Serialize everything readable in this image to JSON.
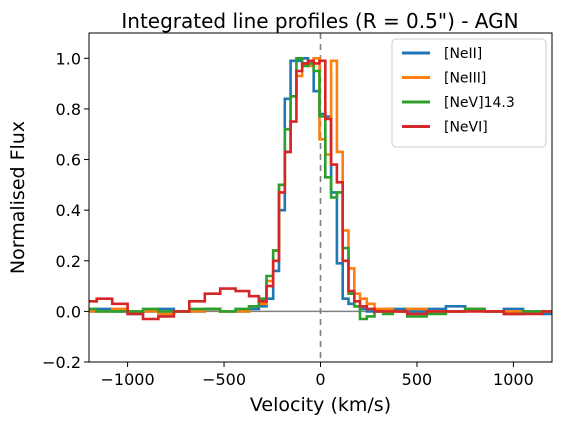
{
  "chart_data": {
    "type": "line",
    "title": "Integrated line profiles (R = 0.5\") - AGN",
    "xlabel": "Velocity (km/s)",
    "ylabel": "Normalised Flux",
    "xlim": [
      -1200,
      1200
    ],
    "ylim": [
      -0.2,
      1.1
    ],
    "xticks": [
      -1000,
      -500,
      0,
      500,
      1000
    ],
    "xtick_labels": [
      "−1000",
      "−500",
      "0",
      "500",
      "1000"
    ],
    "yticks": [
      -0.2,
      0.0,
      0.2,
      0.4,
      0.6,
      0.8,
      1.0
    ],
    "ytick_labels": [
      "−0.2",
      "0.0",
      "0.2",
      "0.4",
      "0.6",
      "0.8",
      "1.0"
    ],
    "grid": false,
    "legend_position": "upper-right",
    "reference_lines": {
      "vertical_dashed_x": 0,
      "horizontal_y": 0
    },
    "series": [
      {
        "name": "[NeII]",
        "color": "#1f77b4",
        "x": [
          -1200,
          -1120,
          -1040,
          -960,
          -880,
          -800,
          -720,
          -640,
          -560,
          -480,
          -400,
          -340,
          -300,
          -260,
          -230,
          -200,
          -170,
          -140,
          -110,
          -80,
          -50,
          -20,
          10,
          40,
          70,
          100,
          130,
          160,
          190,
          220,
          260,
          300,
          350,
          400,
          500,
          600,
          700,
          800,
          900,
          1000,
          1100,
          1200
        ],
        "y": [
          0.0,
          0.01,
          0.0,
          -0.01,
          0.0,
          0.01,
          0.0,
          0.0,
          0.01,
          0.0,
          0.0,
          0.01,
          0.02,
          0.05,
          0.16,
          0.4,
          0.84,
          0.99,
          0.99,
          1.0,
          0.99,
          0.87,
          0.78,
          0.77,
          0.47,
          0.19,
          0.05,
          0.03,
          0.02,
          0.01,
          0.0,
          0.0,
          0.01,
          0.01,
          0.0,
          0.01,
          0.02,
          0.01,
          0.0,
          0.01,
          0.0,
          -0.01
        ]
      },
      {
        "name": "[NeIII]",
        "color": "#ff7f0e",
        "x": [
          -1200,
          -1120,
          -1040,
          -960,
          -880,
          -800,
          -720,
          -640,
          -560,
          -480,
          -400,
          -340,
          -300,
          -260,
          -230,
          -200,
          -170,
          -140,
          -110,
          -80,
          -50,
          -20,
          10,
          40,
          70,
          100,
          130,
          160,
          190,
          220,
          260,
          300,
          350,
          400,
          500,
          600,
          700,
          800,
          900,
          1000,
          1100,
          1200
        ],
        "y": [
          0.0,
          0.0,
          0.01,
          0.0,
          0.0,
          -0.01,
          0.0,
          0.0,
          0.01,
          0.0,
          0.0,
          0.02,
          0.03,
          0.12,
          0.24,
          0.5,
          0.63,
          0.85,
          0.93,
          0.98,
          0.97,
          1.0,
          0.68,
          0.62,
          0.99,
          0.63,
          0.32,
          0.17,
          0.07,
          0.05,
          0.03,
          0.01,
          0.01,
          0.0,
          0.01,
          0.0,
          0.0,
          0.01,
          0.0,
          0.0,
          0.0,
          0.0
        ]
      },
      {
        "name": "[NeV]14.3",
        "color": "#2ca02c",
        "x": [
          -1200,
          -1120,
          -1040,
          -960,
          -880,
          -800,
          -720,
          -640,
          -560,
          -480,
          -400,
          -340,
          -300,
          -260,
          -230,
          -200,
          -170,
          -140,
          -110,
          -80,
          -50,
          -20,
          10,
          40,
          70,
          100,
          130,
          160,
          190,
          220,
          260,
          300,
          350,
          400,
          500,
          600,
          700,
          800,
          900,
          1000,
          1100,
          1200
        ],
        "y": [
          0.01,
          0.0,
          0.0,
          0.0,
          0.01,
          0.0,
          0.0,
          0.01,
          0.01,
          0.0,
          0.01,
          0.02,
          0.05,
          0.14,
          0.24,
          0.5,
          0.72,
          0.85,
          1.0,
          0.97,
          0.98,
          0.95,
          0.77,
          0.53,
          0.45,
          0.47,
          0.25,
          0.07,
          0.02,
          -0.03,
          -0.02,
          0.0,
          -0.01,
          0.0,
          -0.02,
          -0.01,
          0.0,
          0.01,
          0.0,
          -0.01,
          0.0,
          0.0
        ]
      },
      {
        "name": "[NeVI]",
        "color": "#d62728",
        "x": [
          -1200,
          -1120,
          -1040,
          -960,
          -880,
          -800,
          -720,
          -640,
          -560,
          -480,
          -400,
          -340,
          -300,
          -260,
          -230,
          -200,
          -170,
          -140,
          -110,
          -80,
          -50,
          -20,
          10,
          40,
          70,
          100,
          130,
          160,
          190,
          220,
          260,
          300,
          350,
          400,
          500,
          600,
          700,
          800,
          900,
          1000,
          1100,
          1200
        ],
        "y": [
          0.04,
          0.05,
          0.03,
          -0.01,
          -0.03,
          -0.02,
          0.0,
          0.04,
          0.07,
          0.09,
          0.08,
          0.06,
          0.04,
          0.1,
          0.2,
          0.47,
          0.63,
          0.75,
          0.95,
          0.98,
          0.99,
          0.98,
          0.99,
          0.76,
          0.58,
          0.51,
          0.2,
          0.08,
          0.04,
          0.02,
          0.01,
          0.0,
          0.0,
          0.0,
          -0.01,
          0.0,
          0.0,
          0.0,
          0.0,
          -0.01,
          -0.01,
          0.0
        ]
      }
    ]
  }
}
